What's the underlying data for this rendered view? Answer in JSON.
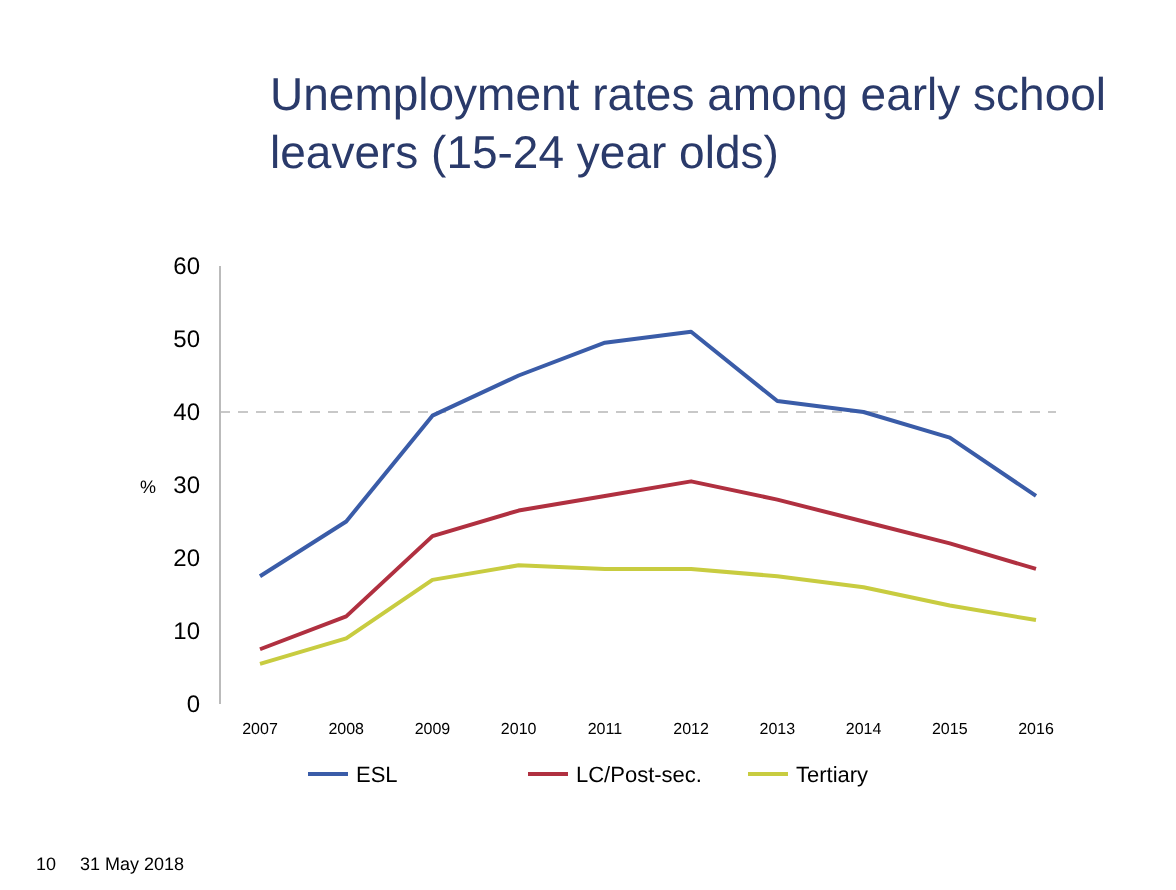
{
  "chart_data": {
    "type": "line",
    "title": "Unemployment rates among early school leavers (15-24 year olds)",
    "ylabel": "%",
    "categories": [
      "2007",
      "2008",
      "2009",
      "2010",
      "2011",
      "2012",
      "2013",
      "2014",
      "2015",
      "2016"
    ],
    "series": [
      {
        "name": "ESL",
        "color": "#3a5ca8",
        "values": [
          17.5,
          25,
          39.5,
          45,
          49.5,
          51,
          41.5,
          40,
          36.5,
          28.5
        ]
      },
      {
        "name": "LC/Post-sec.",
        "color": "#b03040",
        "values": [
          7.5,
          12,
          23,
          26.5,
          28.5,
          30.5,
          28,
          25,
          22,
          18.5
        ]
      },
      {
        "name": "Tertiary",
        "color": "#c8cc40",
        "values": [
          5.5,
          9,
          17,
          19,
          18.5,
          18.5,
          17.5,
          16,
          13.5,
          11.5
        ]
      }
    ],
    "ylim": [
      0,
      60
    ],
    "yticks": [
      0,
      10,
      20,
      30,
      40,
      50,
      60
    ],
    "ref_lines": [
      {
        "axis": "y",
        "value": 40,
        "color": "#c8c8c8",
        "line_style": "dashed"
      }
    ],
    "legend": "bottom",
    "marker": "none",
    "line_style": "solid",
    "annotations": [
      "10",
      "31 May 2018"
    ]
  }
}
